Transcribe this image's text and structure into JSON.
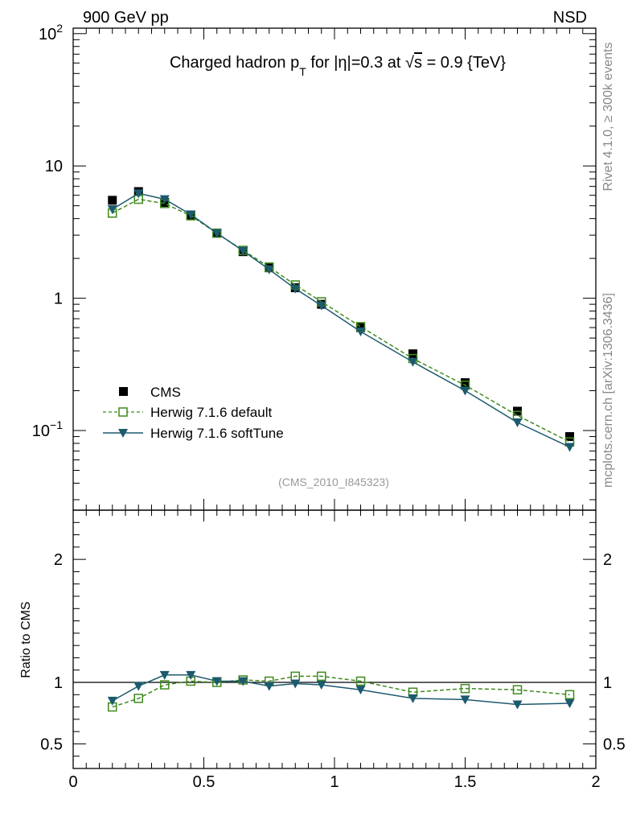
{
  "header": {
    "left_label": "900 GeV pp",
    "right_label": "NSD"
  },
  "side_labels": {
    "rivet": "Rivet 4.1.0, ≥ 300k events",
    "mcplots": "mcplots.cern.ch [arXiv:1306.3436]"
  },
  "chart_data": [
    {
      "type": "scatter",
      "panel": "main",
      "yscale": "log",
      "title_parts": {
        "prefix": "Charged hadron p",
        "sub": "T",
        "mid": " for |η|=0.3 at ",
        "root": "√",
        "s": "s",
        "suffix": " = 0.9 {TeV}"
      },
      "reference": "(CMS_2010_I845323)",
      "xlim": [
        0,
        2
      ],
      "ylim": [
        0.025,
        110
      ],
      "y_ticks": [
        {
          "value": 0.1,
          "label": "10",
          "exp": "−1"
        },
        {
          "value": 1,
          "label": "1",
          "exp": ""
        },
        {
          "value": 10,
          "label": "10",
          "exp": ""
        },
        {
          "value": 100,
          "label": "10",
          "exp": "2"
        }
      ],
      "x": [
        0.15,
        0.25,
        0.35,
        0.45,
        0.55,
        0.65,
        0.75,
        0.85,
        0.95,
        1.1,
        1.3,
        1.5,
        1.7,
        1.9
      ],
      "series": [
        {
          "name": "CMS",
          "style": "data",
          "color": "#000000",
          "values": [
            5.5,
            6.4,
            5.3,
            4.2,
            3.1,
            2.25,
            1.7,
            1.2,
            0.9,
            0.6,
            0.38,
            0.23,
            0.14,
            0.09
          ]
        },
        {
          "name": "Herwig 7.1.6 default",
          "style": "dashed-open-square",
          "color": "#3f8a1c",
          "values": [
            4.4,
            5.6,
            5.2,
            4.2,
            3.1,
            2.3,
            1.72,
            1.26,
            0.94,
            0.61,
            0.35,
            0.22,
            0.13,
            0.082
          ]
        },
        {
          "name": "Herwig 7.1.6 softTune",
          "style": "solid-triangle",
          "color": "#1c5a6e",
          "values": [
            4.7,
            6.2,
            5.6,
            4.3,
            3.1,
            2.28,
            1.65,
            1.18,
            0.88,
            0.56,
            0.33,
            0.2,
            0.115,
            0.075
          ]
        }
      ]
    },
    {
      "type": "line",
      "panel": "ratio",
      "ylabel": "Ratio to CMS",
      "xlim": [
        0,
        2
      ],
      "ylim": [
        0.3,
        2.4
      ],
      "x_ticks": [
        {
          "value": 0,
          "label": "0"
        },
        {
          "value": 0.5,
          "label": "0.5"
        },
        {
          "value": 1,
          "label": "1"
        },
        {
          "value": 1.5,
          "label": "1.5"
        },
        {
          "value": 2,
          "label": "2"
        }
      ],
      "y_ticks": [
        {
          "value": 0.5,
          "label": "0.5"
        },
        {
          "value": 1,
          "label": "1"
        },
        {
          "value": 2,
          "label": "2"
        }
      ],
      "x": [
        0.15,
        0.25,
        0.35,
        0.45,
        0.55,
        0.65,
        0.75,
        0.85,
        0.95,
        1.1,
        1.3,
        1.5,
        1.7,
        1.9
      ],
      "series": [
        {
          "name": "Herwig 7.1.6 default",
          "style": "dashed-open-square",
          "color": "#3f8a1c",
          "values": [
            0.8,
            0.87,
            0.98,
            1.01,
            1.0,
            1.02,
            1.01,
            1.05,
            1.05,
            1.01,
            0.92,
            0.95,
            0.94,
            0.9
          ]
        },
        {
          "name": "Herwig 7.1.6 softTune",
          "style": "solid-triangle",
          "color": "#1c5a6e",
          "values": [
            0.85,
            0.97,
            1.06,
            1.06,
            1.01,
            1.01,
            0.97,
            0.99,
            0.98,
            0.94,
            0.87,
            0.86,
            0.82,
            0.83
          ]
        }
      ]
    }
  ]
}
